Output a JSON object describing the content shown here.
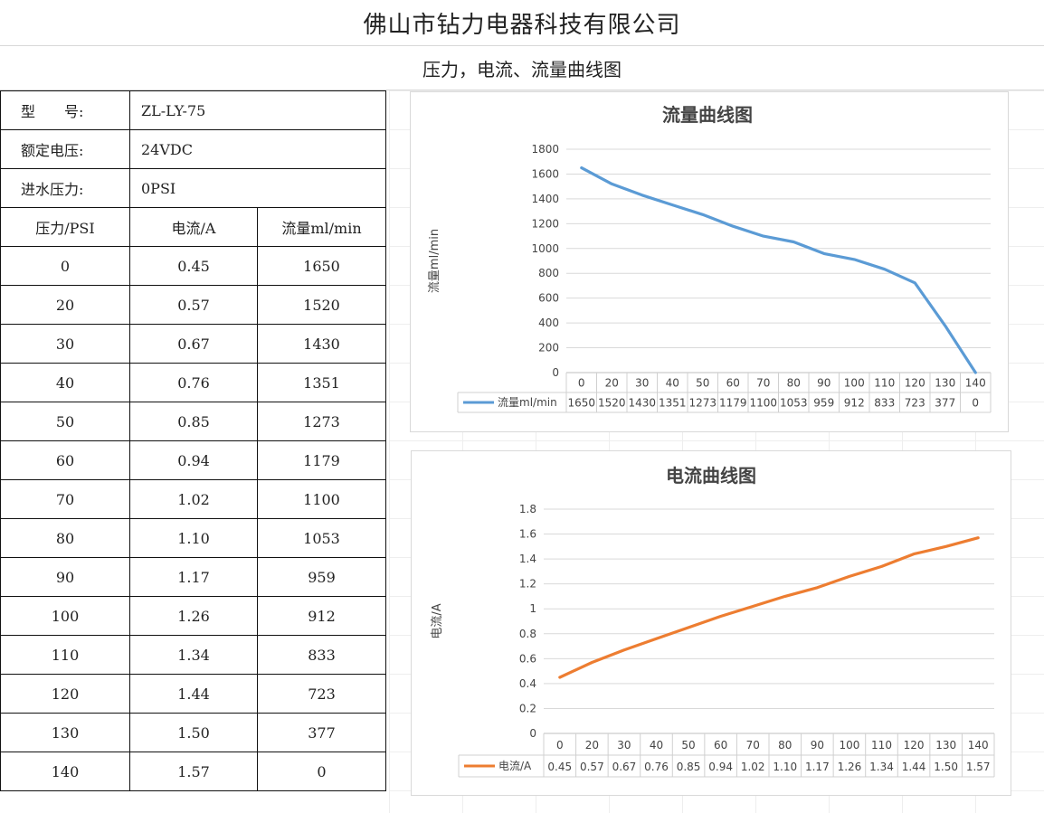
{
  "header": {
    "company": "佛山市钻力电器科技有限公司",
    "subtitle": "压力，电流、流量曲线图"
  },
  "specs": {
    "model_label": "型　　号:",
    "model_value": "ZL-LY-75",
    "voltage_label": "额定电压:",
    "voltage_value": "24VDC",
    "inlet_label": "进水压力:",
    "inlet_value": "0PSI"
  },
  "table": {
    "headers": [
      "压力/PSI",
      "电流/A",
      "流量ml/min"
    ],
    "rows": [
      [
        "0",
        "0.45",
        "1650"
      ],
      [
        "20",
        "0.57",
        "1520"
      ],
      [
        "30",
        "0.67",
        "1430"
      ],
      [
        "40",
        "0.76",
        "1351"
      ],
      [
        "50",
        "0.85",
        "1273"
      ],
      [
        "60",
        "0.94",
        "1179"
      ],
      [
        "70",
        "1.02",
        "1100"
      ],
      [
        "80",
        "1.10",
        "1053"
      ],
      [
        "90",
        "1.17",
        "959"
      ],
      [
        "100",
        "1.26",
        "912"
      ],
      [
        "110",
        "1.34",
        "833"
      ],
      [
        "120",
        "1.44",
        "723"
      ],
      [
        "130",
        "1.50",
        "377"
      ],
      [
        "140",
        "1.57",
        "0"
      ]
    ]
  },
  "chart_data": [
    {
      "type": "line",
      "title": "流量曲线图",
      "ylabel": "流量ml/min",
      "categories": [
        "0",
        "20",
        "30",
        "40",
        "50",
        "60",
        "70",
        "80",
        "90",
        "100",
        "110",
        "120",
        "130",
        "140"
      ],
      "series": [
        {
          "name": "流量ml/min",
          "values": [
            1650,
            1520,
            1430,
            1351,
            1273,
            1179,
            1100,
            1053,
            959,
            912,
            833,
            723,
            377,
            0
          ],
          "color": "#5b9bd5"
        }
      ],
      "ylim": [
        0,
        1800
      ],
      "yticks": [
        "0",
        "200",
        "400",
        "600",
        "800",
        "1000",
        "1200",
        "1400",
        "1600",
        "1800"
      ],
      "data_table": [
        "1650",
        "1520",
        "1430",
        "1351",
        "1273",
        "1179",
        "1100",
        "1053",
        "959",
        "912",
        "833",
        "723",
        "377",
        "0"
      ],
      "grid": true
    },
    {
      "type": "line",
      "title": "电流曲线图",
      "ylabel": "电流/A",
      "categories": [
        "0",
        "20",
        "30",
        "40",
        "50",
        "60",
        "70",
        "80",
        "90",
        "100",
        "110",
        "120",
        "130",
        "140"
      ],
      "series": [
        {
          "name": "电流/A",
          "values": [
            0.45,
            0.57,
            0.67,
            0.76,
            0.85,
            0.94,
            1.02,
            1.1,
            1.17,
            1.26,
            1.34,
            1.44,
            1.5,
            1.57
          ],
          "color": "#ed7d31"
        }
      ],
      "ylim": [
        0,
        1.8
      ],
      "yticks": [
        "0",
        "0.2",
        "0.4",
        "0.6",
        "0.8",
        "1",
        "1.2",
        "1.4",
        "1.6",
        "1.8"
      ],
      "data_table": [
        "0.45",
        "0.57",
        "0.67",
        "0.76",
        "0.85",
        "0.94",
        "1.02",
        "1.10",
        "1.17",
        "1.26",
        "1.34",
        "1.44",
        "1.50",
        "1.57"
      ],
      "grid": true
    }
  ]
}
